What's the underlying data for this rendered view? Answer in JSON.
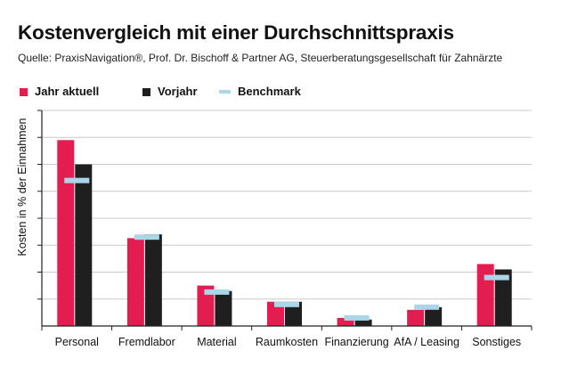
{
  "header": {
    "title": "Kostenvergleich mit einer Durchschnittspraxis",
    "subtitle": "Quelle: PraxisNavigation®, Prof. Dr. Bischoff & Partner AG, Steuerberatungsgesellschaft für Zahnärzte"
  },
  "legend": {
    "current": "Jahr aktuell",
    "previous": "Vorjahr",
    "benchmark": "Benchmark"
  },
  "colors": {
    "current": "#e41d50",
    "previous": "#1f1f1f",
    "benchmark": "#a9d6e9",
    "grid": "#c9c9c9",
    "axis": "#222222"
  },
  "chart_data": {
    "type": "bar",
    "title": "Kostenvergleich mit einer Durchschnittspraxis",
    "xlabel": "",
    "ylabel": "Kosten in % der Einnahmen",
    "ylim": [
      0,
      40
    ],
    "ytick_step": 5,
    "ytick_labels_shown": false,
    "grid": true,
    "legend_position": "top-left",
    "categories": [
      "Personal",
      "Fremdlabor",
      "Material",
      "Raumkosten",
      "Finanzierung",
      "AfA / Leasing",
      "Sonstiges"
    ],
    "series": [
      {
        "name": "Jahr aktuell",
        "kind": "bar",
        "values": [
          34.5,
          16.3,
          7.5,
          4.5,
          1.5,
          3.0,
          11.5
        ]
      },
      {
        "name": "Vorjahr",
        "kind": "bar",
        "values": [
          30.0,
          17.0,
          6.5,
          4.5,
          1.2,
          3.5,
          10.5
        ]
      },
      {
        "name": "Benchmark",
        "kind": "marker",
        "values": [
          27.0,
          16.5,
          6.3,
          4.0,
          1.5,
          3.5,
          9.0
        ]
      }
    ]
  }
}
